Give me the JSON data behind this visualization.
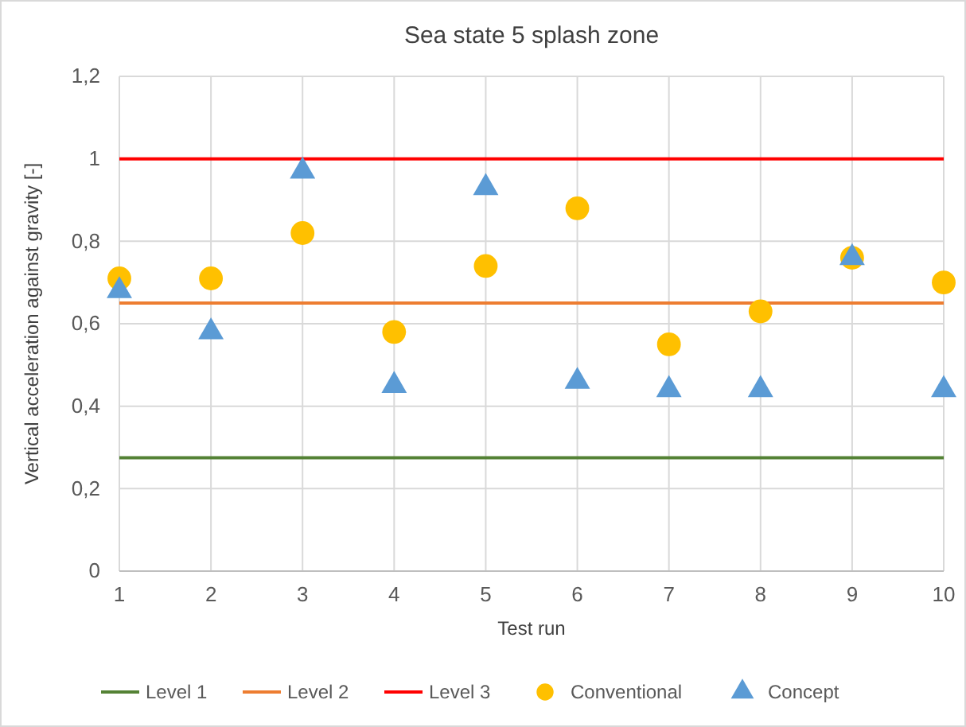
{
  "chart_data": {
    "type": "scatter",
    "title": "Sea state 5 splash zone",
    "xlabel": "Test run",
    "ylabel": "Vertical acceleration against gravity [-]",
    "x": [
      1,
      2,
      3,
      4,
      5,
      6,
      7,
      8,
      9,
      10
    ],
    "xlim": [
      1,
      10
    ],
    "xticks": [
      1,
      2,
      3,
      4,
      5,
      6,
      7,
      8,
      9,
      10
    ],
    "ylim": [
      0,
      1.2
    ],
    "yticks": [
      0,
      {
        "value": 0.2,
        "label": "0,2"
      },
      {
        "value": 0.4,
        "label": "0,4"
      },
      {
        "value": 0.6,
        "label": "0,6"
      },
      {
        "value": 0.8,
        "label": "0,8"
      },
      1,
      {
        "value": 1.2,
        "label": "1,2"
      }
    ],
    "grid": true,
    "legend": "bottom",
    "series": [
      {
        "name": "Level 1",
        "type": "line",
        "color": "#548235",
        "marker": "none",
        "values": [
          0.275,
          0.275,
          0.275,
          0.275,
          0.275,
          0.275,
          0.275,
          0.275,
          0.275,
          0.275
        ]
      },
      {
        "name": "Level 2",
        "type": "line",
        "color": "#ed7d31",
        "marker": "none",
        "values": [
          0.65,
          0.65,
          0.65,
          0.65,
          0.65,
          0.65,
          0.65,
          0.65,
          0.65,
          0.65
        ]
      },
      {
        "name": "Level 3",
        "type": "line",
        "color": "#ff0000",
        "marker": "none",
        "values": [
          1,
          1,
          1,
          1,
          1,
          1,
          1,
          1,
          1,
          1
        ]
      },
      {
        "name": "Conventional",
        "color": "#ffc000",
        "marker": "circle",
        "values": [
          0.71,
          0.71,
          0.82,
          0.58,
          0.74,
          0.88,
          0.55,
          0.63,
          0.76,
          0.7
        ]
      },
      {
        "name": "Concept",
        "color": "#5b9bd5",
        "marker": "triangle",
        "values": [
          0.68,
          0.58,
          0.97,
          0.45,
          0.93,
          0.46,
          0.44,
          0.44,
          0.76,
          0.44
        ]
      }
    ]
  }
}
